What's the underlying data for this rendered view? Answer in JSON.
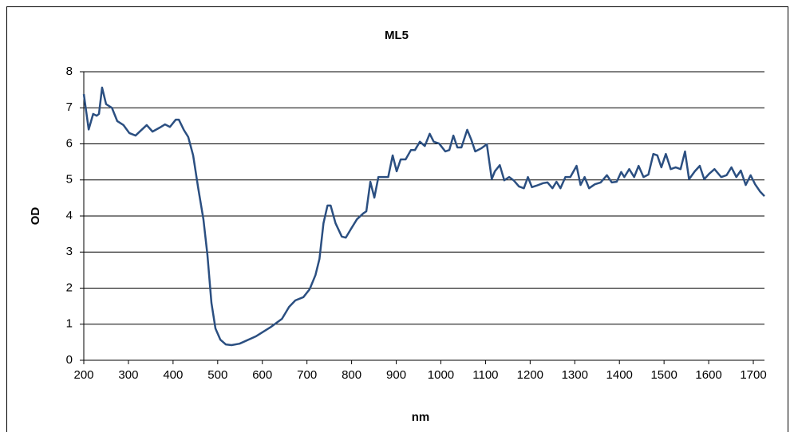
{
  "chart_data": {
    "type": "line",
    "title": "ML5",
    "x_label": "nm",
    "y_label": "OD",
    "x": [
      200,
      211,
      221,
      229,
      234,
      241,
      250,
      263,
      275,
      289,
      302,
      316,
      327,
      341,
      354,
      370,
      382,
      393,
      406,
      413,
      424,
      434,
      445,
      456,
      468,
      477,
      486,
      495,
      506,
      518,
      531,
      549,
      585,
      620,
      644,
      660,
      674,
      692,
      706,
      719,
      728,
      737,
      746,
      753,
      764,
      778,
      787,
      799,
      812,
      826,
      833,
      842,
      851,
      860,
      871,
      882,
      892,
      901,
      910,
      921,
      933,
      942,
      953,
      964,
      975,
      984,
      996,
      1010,
      1019,
      1028,
      1037,
      1046,
      1059,
      1068,
      1077,
      1091,
      1103,
      1114,
      1121,
      1132,
      1142,
      1153,
      1163,
      1175,
      1186,
      1195,
      1204,
      1214,
      1229,
      1239,
      1250,
      1259,
      1268,
      1279,
      1290,
      1304,
      1313,
      1322,
      1332,
      1345,
      1358,
      1372,
      1383,
      1394,
      1404,
      1411,
      1422,
      1433,
      1443,
      1454,
      1465,
      1476,
      1485,
      1494,
      1504,
      1515,
      1526,
      1537,
      1547,
      1556,
      1569,
      1580,
      1590,
      1601,
      1613,
      1628,
      1640,
      1651,
      1662,
      1672,
      1683,
      1694,
      1704,
      1715,
      1725
    ],
    "series": [
      {
        "name": "ML5",
        "color": "#2b4f81",
        "values": [
          7.38,
          6.4,
          6.83,
          6.78,
          6.83,
          7.56,
          7.1,
          7.0,
          6.63,
          6.52,
          6.3,
          6.23,
          6.36,
          6.52,
          6.34,
          6.45,
          6.54,
          6.47,
          6.67,
          6.67,
          6.39,
          6.19,
          5.68,
          4.8,
          3.91,
          2.92,
          1.59,
          0.88,
          0.57,
          0.44,
          0.42,
          0.46,
          0.66,
          0.93,
          1.15,
          1.48,
          1.66,
          1.75,
          1.97,
          2.36,
          2.81,
          3.8,
          4.29,
          4.29,
          3.8,
          3.43,
          3.4,
          3.65,
          3.91,
          4.07,
          4.13,
          4.95,
          4.51,
          5.08,
          5.08,
          5.08,
          5.68,
          5.24,
          5.57,
          5.57,
          5.83,
          5.83,
          6.06,
          5.94,
          6.28,
          6.06,
          6.01,
          5.79,
          5.83,
          6.23,
          5.9,
          5.9,
          6.39,
          6.12,
          5.79,
          5.88,
          5.99,
          5.02,
          5.24,
          5.41,
          4.99,
          5.08,
          4.99,
          4.82,
          4.77,
          5.08,
          4.8,
          4.84,
          4.91,
          4.93,
          4.77,
          4.95,
          4.77,
          5.08,
          5.08,
          5.39,
          4.86,
          5.08,
          4.77,
          4.88,
          4.93,
          5.13,
          4.93,
          4.95,
          5.22,
          5.08,
          5.3,
          5.08,
          5.39,
          5.08,
          5.15,
          5.72,
          5.68,
          5.35,
          5.72,
          5.3,
          5.35,
          5.3,
          5.79,
          5.02,
          5.24,
          5.39,
          5.02,
          5.17,
          5.3,
          5.08,
          5.13,
          5.35,
          5.08,
          5.26,
          4.86,
          5.13,
          4.88,
          4.68,
          4.55
        ]
      }
    ],
    "xlim": [
      200,
      1725
    ],
    "xticks": [
      200,
      300,
      400,
      500,
      600,
      700,
      800,
      900,
      1000,
      1100,
      1200,
      1300,
      1400,
      1500,
      1600,
      1700
    ],
    "ylim": [
      0,
      8
    ],
    "yticks": [
      0,
      1,
      2,
      3,
      4,
      5,
      6,
      7,
      8
    ],
    "grid": true
  }
}
